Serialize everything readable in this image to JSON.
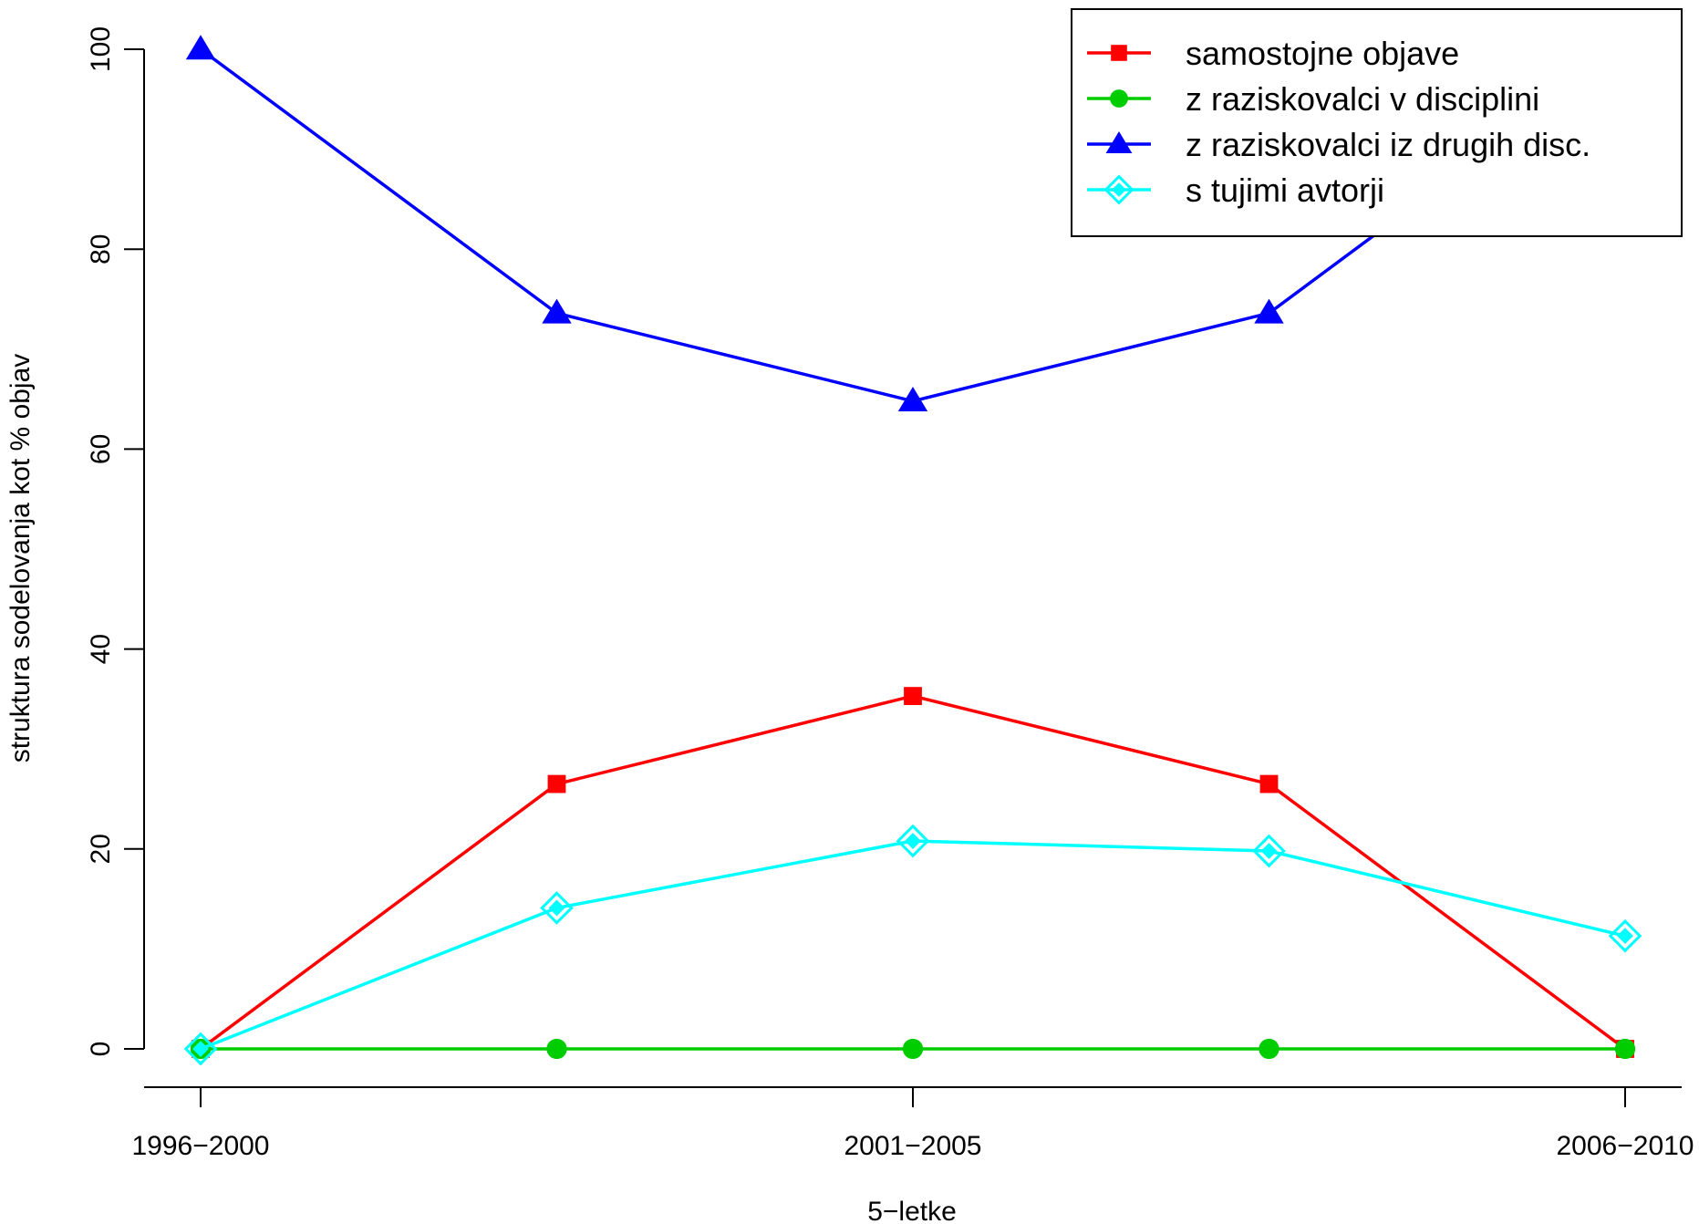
{
  "chart_data": {
    "type": "line",
    "title": "",
    "xlabel": "5−letke",
    "ylabel": "struktura sodelovanja kot % objav",
    "x_tick_labels": [
      "1996−2000",
      "2001−2005",
      "2006−2010"
    ],
    "x_tick_positions": [
      1,
      3,
      5
    ],
    "x_values": [
      1,
      2,
      3,
      4,
      5
    ],
    "xlim": [
      1,
      5
    ],
    "ylim": [
      0,
      100
    ],
    "y_ticks": [
      0,
      20,
      40,
      60,
      80,
      100
    ],
    "y_tick_labels": [
      "0",
      "20",
      "40",
      "60",
      "80",
      "100"
    ],
    "grid": false,
    "legend_position": "top-right",
    "series": [
      {
        "name": "samostojne objave",
        "color": "#ff0000",
        "marker": "square",
        "values": [
          0,
          26.5,
          35.3,
          26.5,
          0
        ]
      },
      {
        "name": "z raziskovalci v disciplini",
        "color": "#00cd00",
        "marker": "circle",
        "values": [
          0,
          0,
          0,
          0,
          0
        ]
      },
      {
        "name": "z raziskovalci iz drugih disc.",
        "color": "#0000ff",
        "marker": "triangle",
        "values": [
          100,
          73.6,
          64.8,
          73.6,
          100
        ]
      },
      {
        "name": "s tujimi avtorji",
        "color": "#00ffff",
        "marker": "diamond",
        "values": [
          0,
          14.1,
          20.8,
          19.8,
          11.3
        ]
      }
    ]
  }
}
